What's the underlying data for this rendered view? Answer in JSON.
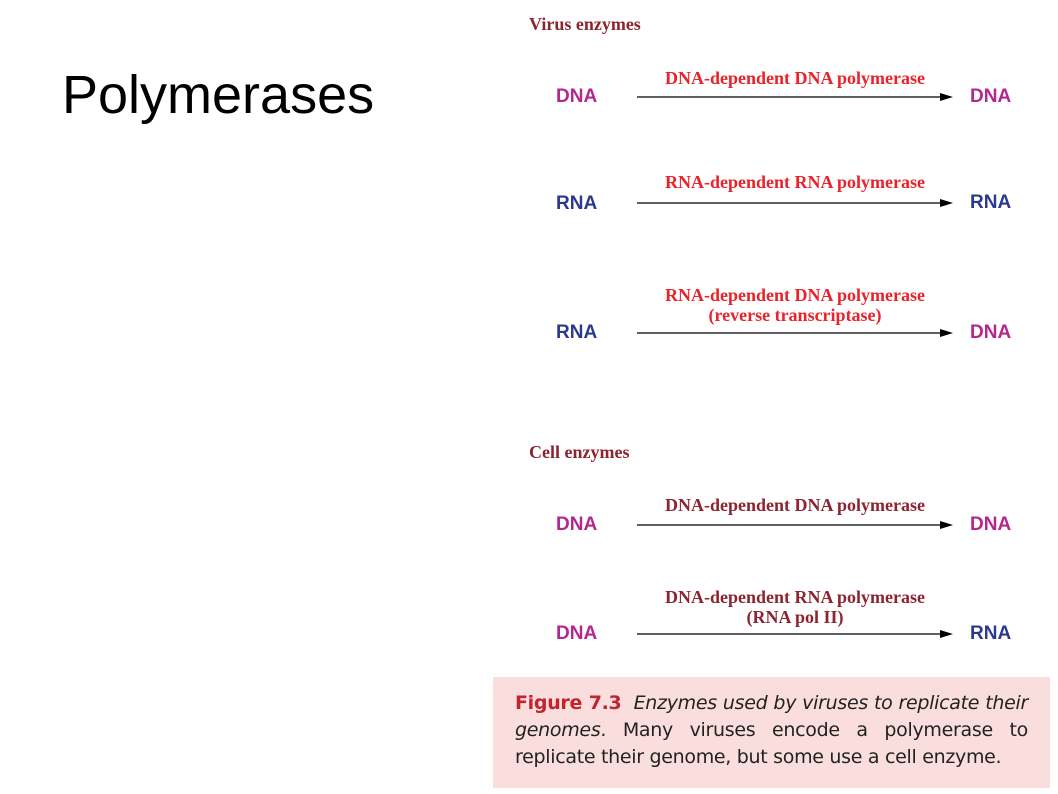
{
  "slide": {
    "title": "Polymerases"
  },
  "colors": {
    "dna": "#b3278f",
    "rna": "#2b3990",
    "virus_enzyme": "#e8232a",
    "cell_enzyme": "#8c2432",
    "heading": "#8c2432",
    "caption_bg": "#f9dedd"
  },
  "sections": [
    {
      "heading": "Virus enzymes",
      "rows": [
        {
          "source": "DNA",
          "target": "DNA",
          "enzyme": [
            "DNA-dependent DNA polymerase"
          ]
        },
        {
          "source": "RNA",
          "target": "RNA",
          "enzyme": [
            "RNA-dependent RNA polymerase"
          ]
        },
        {
          "source": "RNA",
          "target": "DNA",
          "enzyme": [
            "RNA-dependent DNA polymerase",
            "(reverse transcriptase)"
          ]
        }
      ]
    },
    {
      "heading": "Cell enzymes",
      "rows": [
        {
          "source": "DNA",
          "target": "DNA",
          "enzyme": [
            "DNA-dependent DNA polymerase"
          ]
        },
        {
          "source": "DNA",
          "target": "RNA",
          "enzyme": [
            "DNA-dependent RNA polymerase",
            "(RNA pol II)"
          ]
        }
      ]
    }
  ],
  "caption": {
    "label": "Figure 7.3",
    "italic": "Enzymes used by viruses to replicate their genomes",
    "text": ". Many viruses encode a polymerase to replicate their genome, but some use a cell enzyme."
  }
}
